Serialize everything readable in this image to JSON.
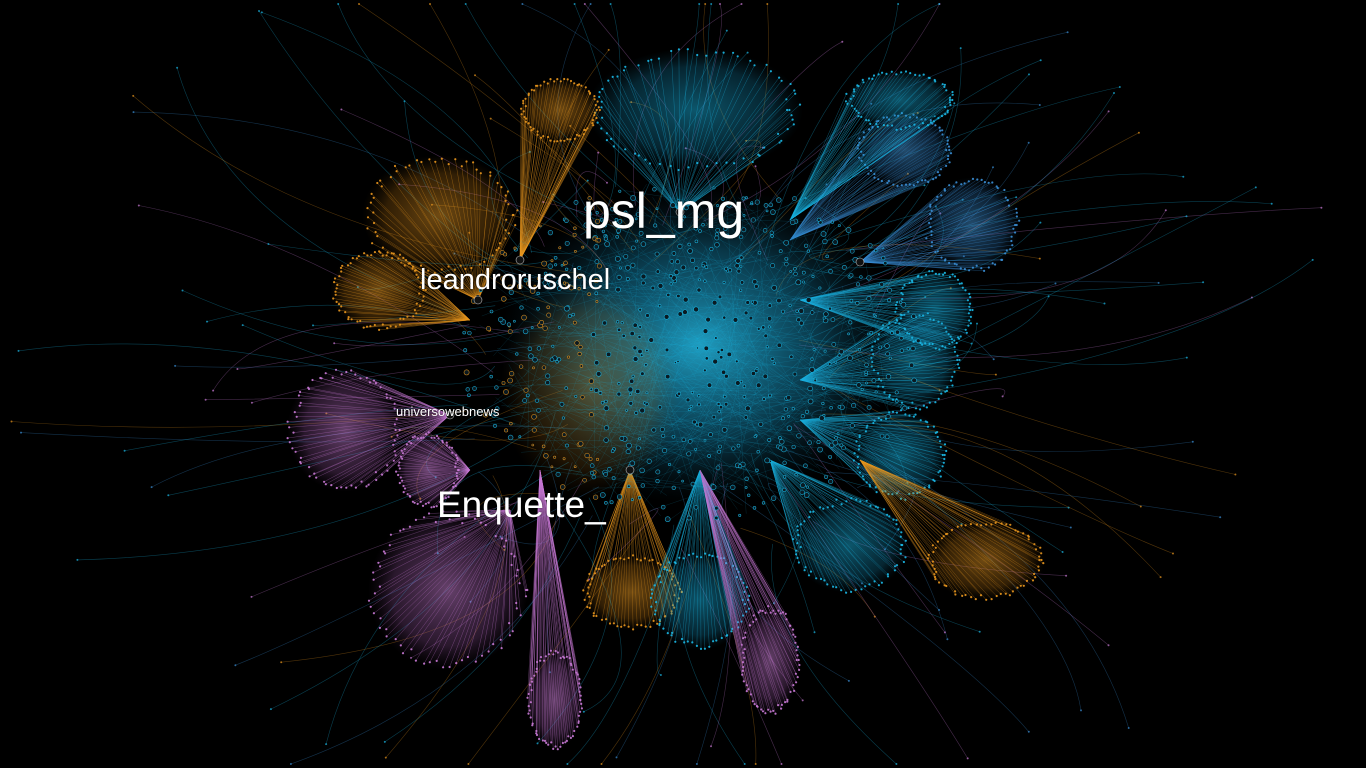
{
  "graph": {
    "background": "#000000",
    "communities": {
      "blue": "#1bb8e6",
      "orange": "#e8961e",
      "purple": "#c97ad6",
      "steel": "#3a8fd6"
    },
    "labels": {
      "psl_mg": "psl_mg",
      "leandroruschel": "leandroruschel",
      "universowebnews": "universowebnews",
      "enquette": "Enquette_"
    }
  }
}
